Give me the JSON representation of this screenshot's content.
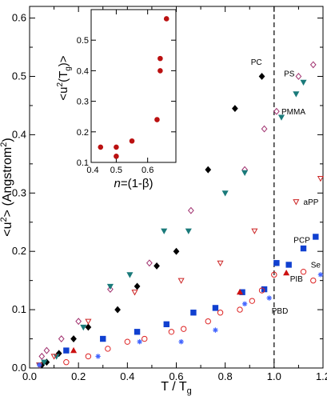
{
  "chart_data": [
    {
      "type": "scatter",
      "xlabel": "T / T",
      "xlabel_sub": "g",
      "ylabel": "<u",
      "ylabel_sup": "2",
      "ylabel_rest": "> (Angstrom",
      "ylabel_sup2": "2",
      "ylabel_end": ")",
      "xlim": [
        0,
        1.2
      ],
      "ylim": [
        0,
        0.62
      ],
      "xticks": [
        "0.0",
        "0.2",
        "0.4",
        "0.6",
        "0.8",
        "1.0",
        "1.2"
      ],
      "xtick_values": [
        0,
        0.2,
        0.4,
        0.6,
        0.8,
        1.0,
        1.2
      ],
      "yticks": [
        "0.0",
        "0.1",
        "0.2",
        "0.3",
        "0.4",
        "0.5",
        "0.6"
      ],
      "ytick_values": [
        0,
        0.1,
        0.2,
        0.3,
        0.4,
        0.5,
        0.6
      ],
      "reference_line_x": 1.0,
      "series": [
        {
          "name": "PC",
          "marker": "diamond",
          "filled": true,
          "color": "#000000",
          "x": [
            0.05,
            0.07,
            0.12,
            0.18,
            0.24,
            0.36,
            0.44,
            0.52,
            0.6,
            0.73,
            0.84,
            0.95
          ],
          "y": [
            0.005,
            0.01,
            0.025,
            0.05,
            0.07,
            0.1,
            0.14,
            0.175,
            0.2,
            0.34,
            0.445,
            0.5
          ]
        },
        {
          "name": "PS",
          "marker": "diamond",
          "filled": false,
          "color": "#a0306e",
          "x": [
            0.05,
            0.07,
            0.13,
            0.2,
            0.33,
            0.49,
            0.66,
            0.88,
            0.96,
            1.01,
            1.1,
            1.16
          ],
          "y": [
            0.02,
            0.03,
            0.05,
            0.08,
            0.135,
            0.18,
            0.27,
            0.34,
            0.41,
            0.44,
            0.5,
            0.52
          ]
        },
        {
          "name": "PMMA",
          "marker": "triangle-down",
          "filled": true,
          "color": "#1a7a7a",
          "x": [
            0.04,
            0.06,
            0.11,
            0.22,
            0.33,
            0.41,
            0.55,
            0.65,
            0.8,
            0.88,
            1.03,
            1.09,
            1.12
          ],
          "y": [
            0.005,
            0.01,
            0.02,
            0.07,
            0.14,
            0.16,
            0.235,
            0.235,
            0.3,
            0.335,
            0.43,
            0.47,
            0.49
          ]
        },
        {
          "name": "aPP",
          "marker": "triangle-down",
          "filled": false,
          "color": "#cc2222",
          "x": [
            0.04,
            0.1,
            0.24,
            0.43,
            0.62,
            0.78,
            0.92,
            1.09,
            1.19
          ],
          "y": [
            0.005,
            0.02,
            0.08,
            0.13,
            0.15,
            0.18,
            0.235,
            0.285,
            0.325
          ]
        },
        {
          "name": "PCP",
          "marker": "square",
          "filled": true,
          "color": "#1040d0",
          "x": [
            0.15,
            0.3,
            0.44,
            0.56,
            0.67,
            0.76,
            0.87,
            0.96,
            1.01,
            1.06,
            1.12,
            1.17
          ],
          "y": [
            0.03,
            0.05,
            0.062,
            0.075,
            0.095,
            0.103,
            0.13,
            0.135,
            0.18,
            0.177,
            0.205,
            0.225
          ]
        },
        {
          "name": "Se",
          "marker": "circle",
          "filled": false,
          "color": "#dd2222",
          "x": [
            0.15,
            0.24,
            0.32,
            0.4,
            0.47,
            0.58,
            0.63,
            0.73,
            0.78,
            0.86,
            0.91,
            0.95,
            1.0,
            1.12,
            1.16
          ],
          "y": [
            0.01,
            0.02,
            0.033,
            0.045,
            0.05,
            0.062,
            0.067,
            0.08,
            0.095,
            0.1,
            0.115,
            0.133,
            0.16,
            0.165,
            0.15
          ]
        },
        {
          "name": "PIB",
          "marker": "triangle-up",
          "filled": true,
          "color": "#cc1111",
          "x": [
            0.18,
            0.86,
            1.05
          ],
          "y": [
            0.03,
            0.13,
            0.163
          ]
        },
        {
          "name": "PBD",
          "marker": "star",
          "filled": true,
          "color": "#4466ff",
          "x": [
            0.04,
            0.28,
            0.45,
            0.62,
            0.76,
            0.88,
            0.98,
            1.19
          ],
          "y": [
            0.005,
            0.02,
            0.045,
            0.045,
            0.065,
            0.11,
            0.12,
            0.16
          ]
        }
      ],
      "labels": [
        {
          "text": "PC",
          "x": 0.905,
          "y": 0.52
        },
        {
          "text": "PS",
          "x": 1.04,
          "y": 0.5
        },
        {
          "text": "PMMA",
          "x": 1.03,
          "y": 0.435
        },
        {
          "text": "aPP",
          "x": 1.12,
          "y": 0.28
        },
        {
          "text": "PCP",
          "x": 1.08,
          "y": 0.215
        },
        {
          "text": "Se",
          "x": 1.15,
          "y": 0.172
        },
        {
          "text": "PIB",
          "x": 1.065,
          "y": 0.148
        },
        {
          "text": "PBD",
          "x": 0.99,
          "y": 0.093
        }
      ]
    },
    {
      "type": "scatter",
      "xlabel": "n",
      "xlabel_rest": "=(1-β)",
      "ylabel": "<u",
      "ylabel_sup": "2",
      "ylabel_rest": "(T",
      "ylabel_sub": "g",
      "ylabel_end": ")>",
      "xlim": [
        0.42,
        0.69
      ],
      "ylim": [
        0.1,
        0.6
      ],
      "xticks": [
        "0.4",
        "0.5",
        "0.6"
      ],
      "xtick_values": [
        0.4,
        0.5,
        0.6
      ],
      "yticks": [
        "0.1",
        "0.2",
        "0.3",
        "0.4",
        "0.5"
      ],
      "ytick_values": [
        0.1,
        0.2,
        0.3,
        0.4,
        0.5
      ],
      "series": [
        {
          "name": "",
          "marker": "circle",
          "filled": true,
          "color": "#bb1111",
          "x": [
            0.45,
            0.5,
            0.5,
            0.55,
            0.63,
            0.64,
            0.64,
            0.66
          ],
          "y": [
            0.15,
            0.15,
            0.12,
            0.17,
            0.24,
            0.44,
            0.4,
            0.57
          ]
        }
      ]
    }
  ]
}
